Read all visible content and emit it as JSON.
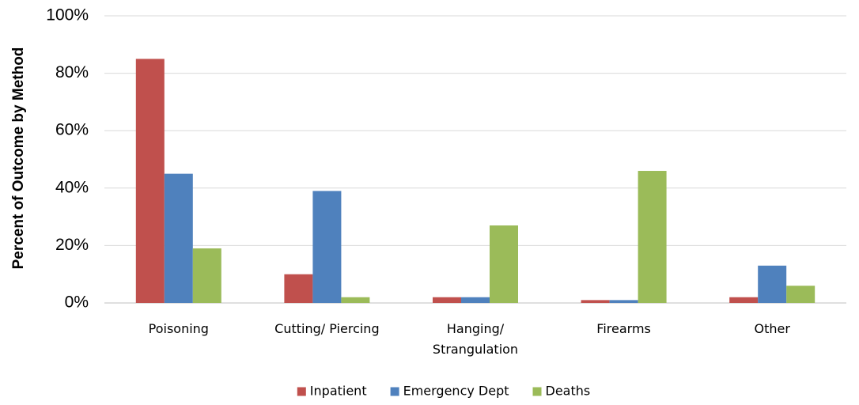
{
  "chart_data": {
    "type": "bar",
    "ylabel": "Percent of Outcome by Method",
    "categories": [
      "Poisoning",
      "Cutting/ Piercing",
      "Hanging/ Strangulation",
      "Firearms",
      "Other"
    ],
    "series": [
      {
        "name": "Inpatient",
        "color": "#c0504d",
        "values": [
          85,
          10,
          2,
          1,
          2
        ]
      },
      {
        "name": "Emergency Dept",
        "color": "#4f81bd",
        "values": [
          45,
          39,
          2,
          1,
          13
        ]
      },
      {
        "name": "Deaths",
        "color": "#9bbb59",
        "values": [
          19,
          2,
          27,
          46,
          6
        ]
      }
    ],
    "ylim": [
      0,
      100
    ],
    "yticks": [
      {
        "value": 0,
        "label": "0%"
      },
      {
        "value": 20,
        "label": "20%"
      },
      {
        "value": 40,
        "label": "40%"
      },
      {
        "value": 60,
        "label": "60%"
      },
      {
        "value": 80,
        "label": "80%"
      },
      {
        "value": 100,
        "label": "100%"
      }
    ],
    "grid": true,
    "legend": "bottom"
  }
}
